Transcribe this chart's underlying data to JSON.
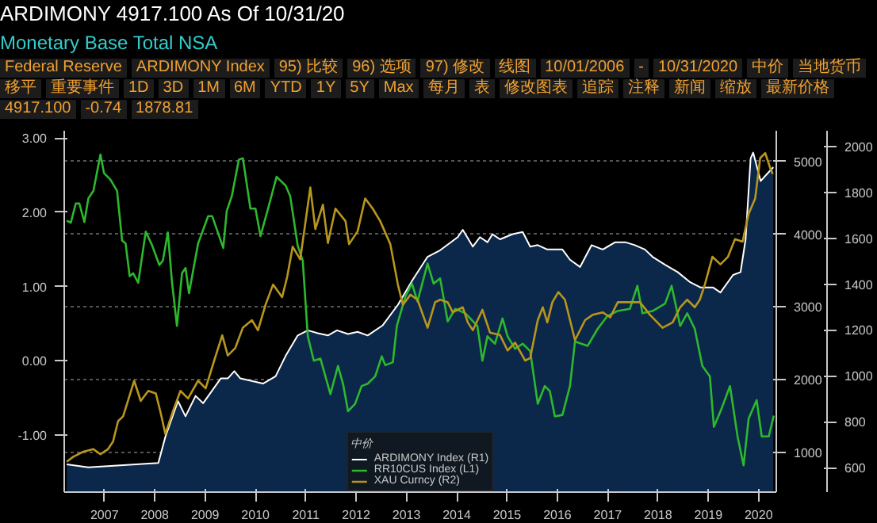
{
  "chart_data": {
    "type": "line",
    "title": "ARDIMONY   4917.100   As Of 10/31/20",
    "subtitle": "Monetary Base Total NSA",
    "annotations": [
      "Federal Reserve",
      "ARDIMONY Index",
      "95) 比较",
      "96) 选项",
      "97) 修改",
      "线图",
      "10/01/2006",
      "-",
      "10/31/2020",
      "中价",
      "当地货币",
      "移平",
      "重要事件",
      "1D",
      "3D",
      "1M",
      "6M",
      "YTD",
      "1Y",
      "5Y",
      "Max",
      "每月",
      "表",
      "修改图表",
      "追踪",
      "注释",
      "新闻",
      "缩放",
      "最新价格",
      "4917.100",
      "-0.74",
      "1878.81"
    ],
    "legend_title": "中价",
    "legend": "bottom",
    "grid": "y",
    "line_style": "solid",
    "xlim": [
      2006.7,
      2020.85
    ],
    "xticks": [
      {
        "value": 2007.5,
        "label": "2007"
      },
      {
        "value": 2008.5,
        "label": "2008"
      },
      {
        "value": 2009.5,
        "label": "2009"
      },
      {
        "value": 2010.5,
        "label": "2010"
      },
      {
        "value": 2011.5,
        "label": "2011"
      },
      {
        "value": 2012.5,
        "label": "2012"
      },
      {
        "value": 2013.5,
        "label": "2013"
      },
      {
        "value": 2014.5,
        "label": "2014"
      },
      {
        "value": 2015.5,
        "label": "2015"
      },
      {
        "value": 2016.5,
        "label": "2016"
      },
      {
        "value": 2017.5,
        "label": "2017"
      },
      {
        "value": 2018.5,
        "label": "2018"
      },
      {
        "value": 2019.5,
        "label": "2019"
      },
      {
        "value": 2020.5,
        "label": "2020"
      }
    ],
    "ylim": [
      -1.77,
      3.1
    ],
    "yticks": [
      {
        "value": -1,
        "label": "-1.00"
      },
      {
        "value": 0,
        "label": "0.00"
      },
      {
        "value": 1,
        "label": "1.00"
      },
      {
        "value": 2,
        "label": "2.00"
      },
      {
        "value": 3,
        "label": "3.00"
      }
    ],
    "y2lim": [
      460,
      5420
    ],
    "y2ticks": [
      1000,
      2000,
      3000,
      4000,
      5000
    ],
    "y3lim": [
      494,
      2068
    ],
    "y3ticks": [
      600,
      800,
      1000,
      1200,
      1400,
      1600,
      1800,
      2000
    ],
    "series": [
      {
        "name": "ARDIMONY Index (R1)",
        "type": "area",
        "axis": "y2",
        "color": "#ffffff",
        "x": [
          2006.75,
          2007.18,
          2008.57,
          2008.71,
          2008.96,
          2009.11,
          2009.31,
          2009.46,
          2009.81,
          2009.95,
          2010.08,
          2010.2,
          2010.65,
          2010.9,
          2011.1,
          2011.34,
          2011.54,
          2011.74,
          2011.94,
          2012.12,
          2012.34,
          2012.53,
          2012.73,
          2013.03,
          2013.33,
          2013.62,
          2013.92,
          2014.17,
          2014.52,
          2014.62,
          2014.82,
          2014.96,
          2015.11,
          2015.21,
          2015.36,
          2015.61,
          2015.81,
          2015.96,
          2016.11,
          2016.3,
          2016.6,
          2016.75,
          2016.95,
          2017.18,
          2017.4,
          2017.65,
          2017.85,
          2018.04,
          2018.24,
          2018.39,
          2018.64,
          2018.89,
          2019.14,
          2019.34,
          2019.59,
          2019.74,
          2019.99,
          2020.14,
          2020.24,
          2020.34,
          2020.39,
          2020.54,
          2020.67,
          2020.79
        ],
        "values": [
          840,
          800,
          860,
          1220,
          1710,
          1500,
          1780,
          1680,
          2020,
          2020,
          2120,
          2020,
          1950,
          2050,
          2330,
          2610,
          2680,
          2640,
          2610,
          2680,
          2630,
          2660,
          2610,
          2750,
          3030,
          3370,
          3690,
          3780,
          3960,
          4060,
          3830,
          3960,
          3890,
          4000,
          3930,
          4000,
          4030,
          3830,
          3850,
          3790,
          3790,
          3650,
          3550,
          3850,
          3790,
          3890,
          3890,
          3850,
          3790,
          3690,
          3580,
          3480,
          3340,
          3270,
          3270,
          3200,
          3440,
          3480,
          3930,
          5040,
          5120,
          4730,
          4830,
          4920
        ]
      },
      {
        "name": "RR10CUS Index (L1)",
        "color": "#2db82d",
        "x": [
          2006.75,
          2006.83,
          2006.93,
          2007.0,
          2007.1,
          2007.18,
          2007.28,
          2007.42,
          2007.49,
          2007.62,
          2007.75,
          2007.85,
          2007.92,
          2008.0,
          2008.07,
          2008.17,
          2008.32,
          2008.45,
          2008.59,
          2008.66,
          2008.76,
          2008.84,
          2008.94,
          2009.04,
          2009.11,
          2009.18,
          2009.36,
          2009.56,
          2009.64,
          2009.86,
          2009.93,
          2010.03,
          2010.17,
          2010.25,
          2010.4,
          2010.5,
          2010.6,
          2010.75,
          2010.92,
          2011.1,
          2011.19,
          2011.34,
          2011.44,
          2011.54,
          2011.66,
          2011.79,
          2011.99,
          2012.14,
          2012.24,
          2012.34,
          2012.48,
          2012.61,
          2012.73,
          2012.88,
          2013.01,
          2013.08,
          2013.23,
          2013.31,
          2013.48,
          2013.61,
          2013.72,
          2013.92,
          2014.04,
          2014.17,
          2014.32,
          2014.47,
          2014.67,
          2014.91,
          2015.01,
          2015.11,
          2015.26,
          2015.41,
          2015.51,
          2015.66,
          2015.81,
          2015.96,
          2016.11,
          2016.25,
          2016.35,
          2016.45,
          2016.6,
          2016.75,
          2016.85,
          2017.1,
          2017.3,
          2017.49,
          2017.69,
          2017.94,
          2018.09,
          2018.19,
          2018.39,
          2018.64,
          2018.77,
          2018.94,
          2019.08,
          2019.23,
          2019.38,
          2019.53,
          2019.61,
          2019.76,
          2019.93,
          2020.08,
          2020.2,
          2020.3,
          2020.46,
          2020.56,
          2020.7,
          2020.8
        ],
        "values": [
          1.89,
          1.86,
          2.12,
          2.12,
          1.87,
          2.19,
          2.29,
          2.78,
          2.53,
          2.44,
          2.29,
          1.62,
          1.58,
          1.14,
          1.18,
          1.05,
          1.74,
          1.55,
          1.29,
          1.35,
          1.73,
          1.07,
          0.47,
          1.18,
          1.25,
          0.91,
          1.58,
          1.95,
          1.95,
          1.52,
          2.02,
          2.22,
          2.71,
          2.73,
          2.05,
          2.05,
          1.68,
          2.05,
          2.48,
          2.36,
          2.22,
          1.55,
          1.35,
          0.33,
          0.0,
          0.03,
          -0.45,
          -0.07,
          -0.31,
          -0.68,
          -0.58,
          -0.34,
          -0.31,
          -0.21,
          0.06,
          -0.06,
          -0.02,
          0.47,
          0.87,
          1.04,
          0.8,
          1.31,
          1.04,
          1.11,
          0.53,
          0.7,
          0.64,
          0.47,
          0.0,
          0.33,
          0.23,
          0.57,
          0.33,
          0.16,
          0.23,
          0.13,
          -0.58,
          -0.34,
          -0.41,
          -0.75,
          -0.73,
          -0.34,
          0.26,
          0.2,
          0.43,
          0.6,
          0.67,
          0.7,
          1.01,
          0.64,
          0.67,
          0.77,
          1.01,
          0.47,
          0.64,
          0.43,
          -0.07,
          -0.21,
          -0.89,
          -0.65,
          -0.34,
          -1.02,
          -1.41,
          -0.78,
          -0.53,
          -1.02,
          -1.02,
          -0.74
        ]
      },
      {
        "name": "XAU Curncy (R2)",
        "type": "line",
        "axis": "y3",
        "color": "#b8961e",
        "x": [
          2006.75,
          2006.88,
          2007.08,
          2007.28,
          2007.42,
          2007.57,
          2007.67,
          2007.77,
          2007.87,
          2007.95,
          2008.09,
          2008.22,
          2008.37,
          2008.52,
          2008.62,
          2008.71,
          2008.86,
          2009.01,
          2009.16,
          2009.36,
          2009.51,
          2009.68,
          2009.84,
          2009.95,
          2010.1,
          2010.25,
          2010.43,
          2010.55,
          2010.7,
          2010.85,
          2011.03,
          2011.13,
          2011.24,
          2011.39,
          2011.59,
          2011.69,
          2011.84,
          2011.94,
          2012.09,
          2012.29,
          2012.36,
          2012.53,
          2012.68,
          2012.83,
          2012.98,
          2013.18,
          2013.33,
          2013.43,
          2013.58,
          2013.72,
          2013.92,
          2014.07,
          2014.17,
          2014.32,
          2014.42,
          2014.62,
          2014.72,
          2014.82,
          2015.01,
          2015.16,
          2015.36,
          2015.51,
          2015.66,
          2015.86,
          2015.96,
          2016.11,
          2016.21,
          2016.3,
          2016.4,
          2016.52,
          2016.65,
          2016.85,
          2017.05,
          2017.2,
          2017.4,
          2017.55,
          2017.7,
          2017.94,
          2018.14,
          2018.34,
          2018.59,
          2018.79,
          2018.94,
          2019.08,
          2019.23,
          2019.33,
          2019.43,
          2019.58,
          2019.74,
          2019.89,
          2020.03,
          2020.18,
          2020.3,
          2020.43,
          2020.53,
          2020.63,
          2020.73,
          2020.78
        ],
        "values": [
          626,
          648,
          670,
          681,
          659,
          681,
          714,
          803,
          824,
          880,
          979,
          891,
          935,
          924,
          836,
          747,
          846,
          935,
          902,
          979,
          946,
          1067,
          1177,
          1089,
          1122,
          1210,
          1243,
          1199,
          1310,
          1398,
          1343,
          1431,
          1563,
          1508,
          1821,
          1640,
          1746,
          1579,
          1729,
          1674,
          1574,
          1630,
          1773,
          1729,
          1674,
          1574,
          1398,
          1310,
          1354,
          1332,
          1210,
          1321,
          1332,
          1321,
          1277,
          1299,
          1233,
          1199,
          1288,
          1189,
          1178,
          1111,
          1145,
          1067,
          1078,
          1243,
          1299,
          1233,
          1321,
          1365,
          1332,
          1156,
          1243,
          1266,
          1277,
          1255,
          1321,
          1321,
          1321,
          1266,
          1210,
          1233,
          1299,
          1332,
          1299,
          1332,
          1398,
          1519,
          1486,
          1519,
          1596,
          1585,
          1706,
          1773,
          1949,
          1971,
          1905,
          1880
        ]
      }
    ]
  }
}
